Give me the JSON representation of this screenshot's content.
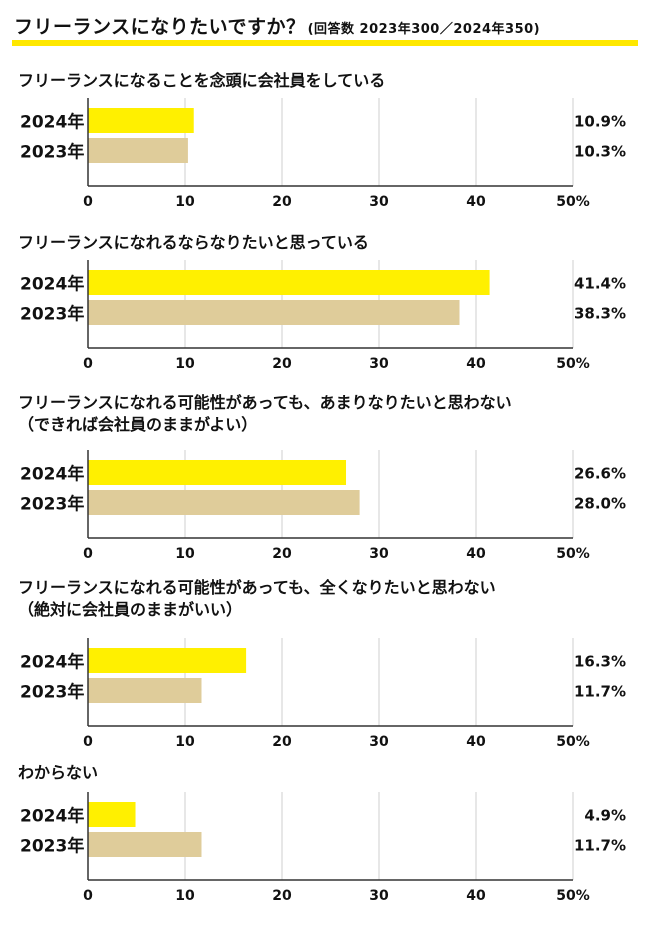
{
  "title": "フリーランスになりたいですか？",
  "subtitle": "(回答数 2023年300／2024年350)",
  "colors": {
    "y2024": "#fff000",
    "y2023": "#dfcc9a",
    "grid": "#cfcfcf",
    "axis": "#333333",
    "rule": "#ffe800"
  },
  "chart_data": [
    {
      "type": "bar",
      "orientation": "horizontal",
      "title": "フリーランスになることを念頭に会社員をしている",
      "categories": [
        "2024年",
        "2023年"
      ],
      "values": [
        10.9,
        10.3
      ],
      "value_labels": [
        "10.9%",
        "10.3%"
      ],
      "xlim": [
        0,
        50
      ],
      "xticks": [
        "0",
        "10",
        "20",
        "30",
        "40",
        "50%"
      ],
      "grid": true
    },
    {
      "type": "bar",
      "orientation": "horizontal",
      "title": "フリーランスになれるならなりたいと思っている",
      "categories": [
        "2024年",
        "2023年"
      ],
      "values": [
        41.4,
        38.3
      ],
      "value_labels": [
        "41.4%",
        "38.3%"
      ],
      "xlim": [
        0,
        50
      ],
      "xticks": [
        "0",
        "10",
        "20",
        "30",
        "40",
        "50%"
      ],
      "grid": true
    },
    {
      "type": "bar",
      "orientation": "horizontal",
      "title": "フリーランスになれる可能性があっても、あまりなりたいと思わない",
      "title_line2": "（できれば会社員のままがよい）",
      "categories": [
        "2024年",
        "2023年"
      ],
      "values": [
        26.6,
        28.0
      ],
      "value_labels": [
        "26.6%",
        "28.0%"
      ],
      "xlim": [
        0,
        50
      ],
      "xticks": [
        "0",
        "10",
        "20",
        "30",
        "40",
        "50%"
      ],
      "grid": true
    },
    {
      "type": "bar",
      "orientation": "horizontal",
      "title": "フリーランスになれる可能性があっても、全くなりたいと思わない",
      "title_line2": "（絶対に会社員のままがいい）",
      "categories": [
        "2024年",
        "2023年"
      ],
      "values": [
        16.3,
        11.7
      ],
      "value_labels": [
        "16.3%",
        "11.7%"
      ],
      "xlim": [
        0,
        50
      ],
      "xticks": [
        "0",
        "10",
        "20",
        "30",
        "40",
        "50%"
      ],
      "grid": true
    },
    {
      "type": "bar",
      "orientation": "horizontal",
      "title": "わからない",
      "categories": [
        "2024年",
        "2023年"
      ],
      "values": [
        4.9,
        11.7
      ],
      "value_labels": [
        "4.9%",
        "11.7%"
      ],
      "xlim": [
        0,
        50
      ],
      "xticks": [
        "0",
        "10",
        "20",
        "30",
        "40",
        "50%"
      ],
      "grid": true
    }
  ]
}
